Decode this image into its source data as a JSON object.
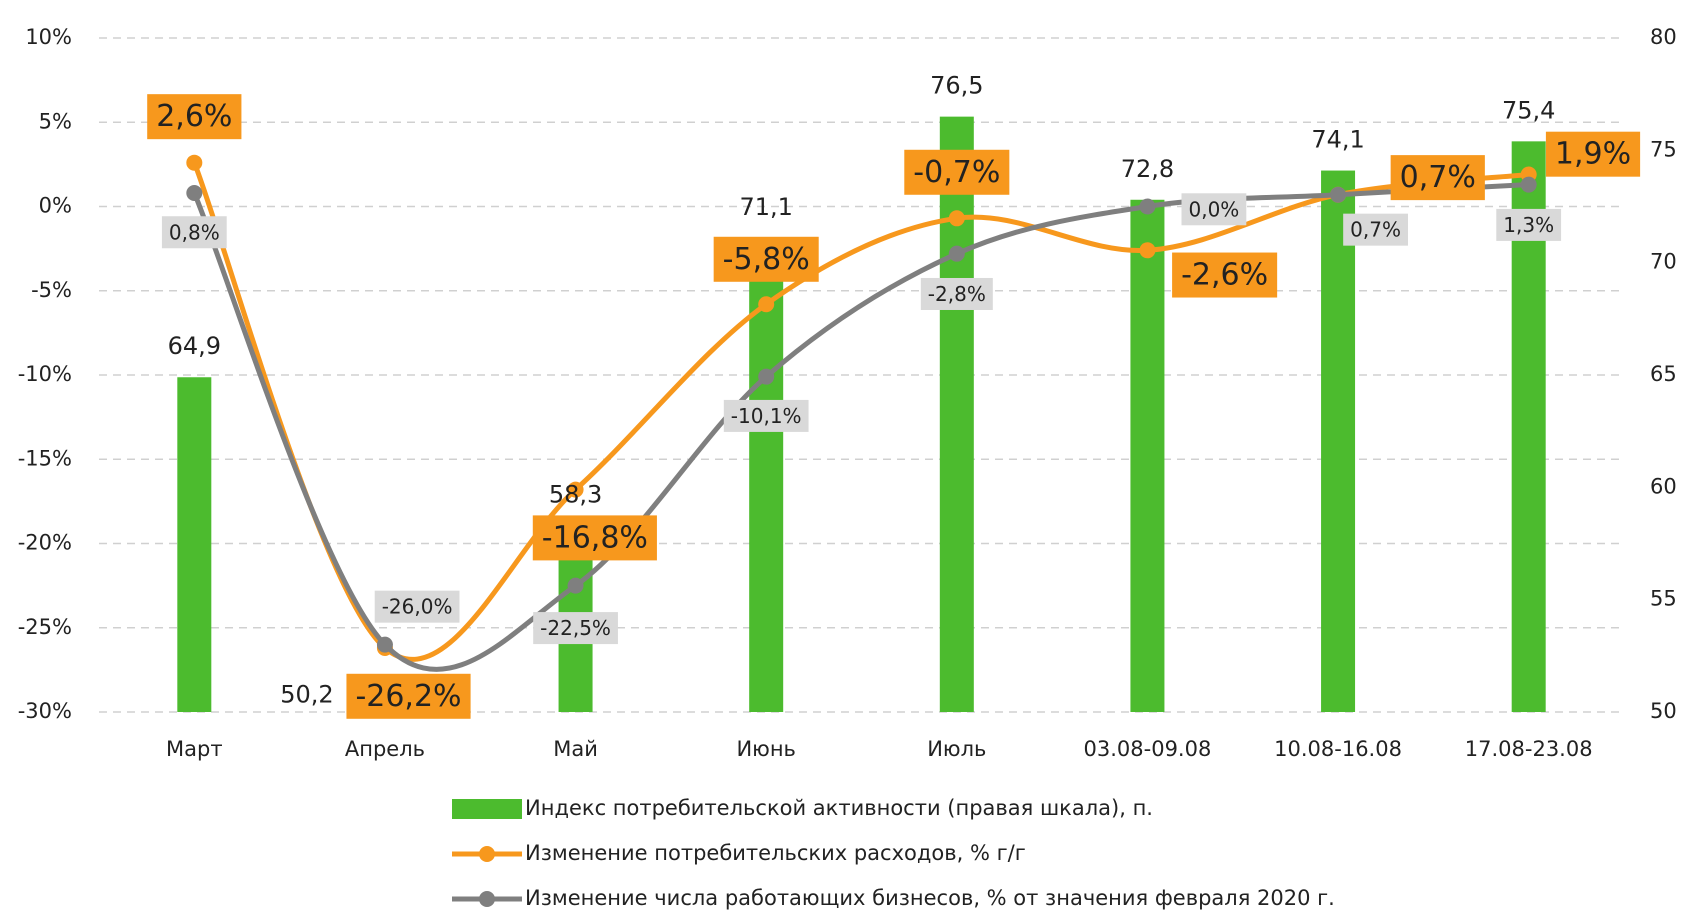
{
  "chart_data": {
    "type": "combo",
    "categories": [
      "Март",
      "Апрель",
      "Май",
      "Июнь",
      "Июль",
      "03.08-09.08",
      "10.08-16.08",
      "17.08-23.08"
    ],
    "ylim": [
      -30,
      10
    ],
    "yticks": [
      {
        "value": -30,
        "label": "-30%"
      },
      {
        "value": -25,
        "label": "-25%"
      },
      {
        "value": -20,
        "label": "-20%"
      },
      {
        "value": -15,
        "label": "-15%"
      },
      {
        "value": -10,
        "label": "-10%"
      },
      {
        "value": -5,
        "label": "-5%"
      },
      {
        "value": 0,
        "label": "0%"
      },
      {
        "value": 5,
        "label": "5%"
      },
      {
        "value": 10,
        "label": "10%"
      }
    ],
    "y2lim": [
      50,
      80
    ],
    "y2ticks": [
      50,
      55,
      60,
      65,
      70,
      75,
      80
    ],
    "grid": true,
    "series": [
      {
        "name": "Индекс потребительской активности (правая шкала), п.",
        "type": "bar",
        "axis": "y2",
        "color": "#4cbb2e",
        "values": [
          64.9,
          50.2,
          58.3,
          71.1,
          76.5,
          72.8,
          74.1,
          75.4
        ],
        "value_labels": [
          "64,9",
          "50,2",
          "58,3",
          "71,1",
          "76,5",
          "72,8",
          "74,1",
          "75,4"
        ]
      },
      {
        "name": "Изменение потребительских расходов, % г/г",
        "type": "line",
        "color": "#f7981d",
        "values": [
          2.6,
          -26.2,
          -16.8,
          -5.8,
          -0.7,
          -2.6,
          0.7,
          1.9
        ],
        "value_labels": [
          "2,6%",
          "-26,2%",
          "-16,8%",
          "-5,8%",
          "-0,7%",
          "-2,6%",
          "0,7%",
          "1,9%"
        ]
      },
      {
        "name": "Изменение числа работающих бизнесов, % от значения февраля 2020 г.",
        "type": "line",
        "color": "#7f7f7f",
        "values": [
          0.8,
          -26.0,
          -22.5,
          -10.1,
          -2.8,
          0.0,
          0.7,
          1.3
        ],
        "value_labels": [
          "0,8%",
          "-26,0%",
          "-22,5%",
          "-10,1%",
          "-2,8%",
          "0,0%",
          "0,7%",
          "1,3%"
        ]
      }
    ]
  }
}
